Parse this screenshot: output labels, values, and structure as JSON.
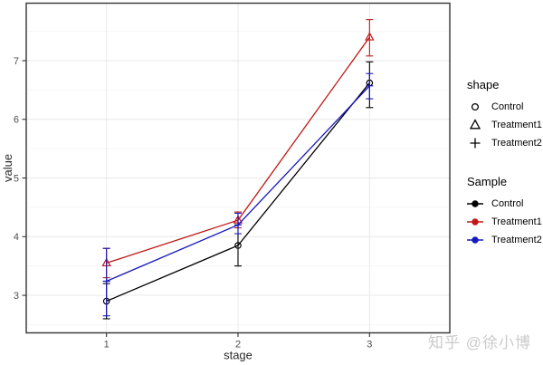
{
  "figure": {
    "background": "#ffffff",
    "watermark_text": "知乎 @徐小博",
    "watermark_color": "#cbcbcb"
  },
  "chart_data": {
    "type": "line",
    "title": "",
    "xlabel": "stage",
    "ylabel": "value",
    "x": [
      1,
      2,
      3
    ],
    "x_tick_labels": [
      "1",
      "2",
      "3"
    ],
    "y_ticks": [
      3,
      4,
      5,
      6,
      7
    ],
    "y_minor_ticks": [
      2.5,
      3.5,
      4.5,
      5.5,
      6.5,
      7.5
    ],
    "xlim": [
      0.39,
      3.61
    ],
    "ylim": [
      2.36,
      7.98
    ],
    "grid": "horizontal major+minor, vertical major only",
    "legend_position": "right",
    "error_bars": true,
    "series": [
      {
        "name": "Control",
        "color": "#000000",
        "shape": "circle",
        "values": [
          2.9,
          3.85,
          6.62
        ],
        "err_low": [
          2.6,
          3.5,
          6.2
        ],
        "err_high": [
          3.2,
          4.2,
          6.98
        ]
      },
      {
        "name": "Treatment1",
        "color": "#c01818",
        "shape": "triangle",
        "values": [
          3.55,
          4.28,
          7.4
        ],
        "err_low": [
          3.3,
          4.15,
          7.08
        ],
        "err_high": [
          3.8,
          4.42,
          7.7
        ]
      },
      {
        "name": "Treatment2",
        "color": "#1818c0",
        "shape": "plus",
        "values": [
          3.24,
          4.2,
          6.57
        ],
        "err_low": [
          2.65,
          4.05,
          6.35
        ],
        "err_high": [
          3.8,
          4.4,
          6.78
        ]
      }
    ]
  },
  "axes": {
    "tick_label_color": "#4d4d4d",
    "axis_title_color": "#2b2b2b",
    "panel_border_color": "#333333",
    "grid_major_color": "#e8e8e8",
    "grid_minor_color": "#f4f4f4"
  },
  "legends": {
    "shape": {
      "title": "shape",
      "items": [
        {
          "label": "Control",
          "shape": "circle"
        },
        {
          "label": "Treatment1",
          "shape": "triangle"
        },
        {
          "label": "Treatment2",
          "shape": "plus"
        }
      ]
    },
    "sample": {
      "title": "Sample",
      "items": [
        {
          "label": "Control",
          "color": "#000000"
        },
        {
          "label": "Treatment1",
          "color": "#c01818"
        },
        {
          "label": "Treatment2",
          "color": "#1818c0"
        }
      ]
    }
  }
}
